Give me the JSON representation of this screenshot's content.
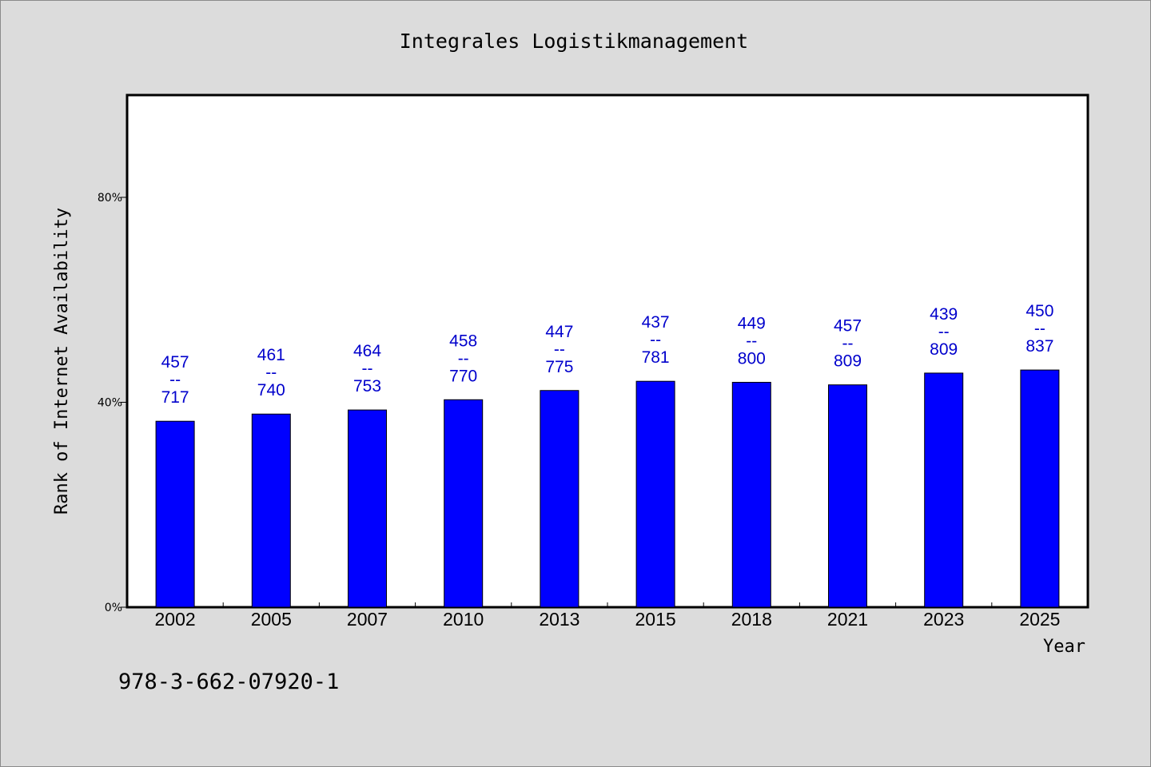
{
  "chart_data": {
    "type": "bar",
    "title": "Integrales Logistikmanagement",
    "xlabel": "Year",
    "ylabel": "Rank of Internet Availability",
    "categories": [
      "2002",
      "2005",
      "2007",
      "2010",
      "2013",
      "2015",
      "2018",
      "2021",
      "2023",
      "2025"
    ],
    "values": [
      36.3,
      37.7,
      38.5,
      40.5,
      42.3,
      44.1,
      43.9,
      43.4,
      45.7,
      46.3
    ],
    "ylim": [
      0,
      100
    ],
    "yticks": [
      0,
      40,
      80
    ],
    "ytick_labels": [
      "0%",
      "40%",
      "80%"
    ],
    "data_labels": [
      {
        "top": "457",
        "mid": "--",
        "bottom": "717"
      },
      {
        "top": "461",
        "mid": "--",
        "bottom": "740"
      },
      {
        "top": "464",
        "mid": "--",
        "bottom": "753"
      },
      {
        "top": "458",
        "mid": "--",
        "bottom": "770"
      },
      {
        "top": "447",
        "mid": "--",
        "bottom": "775"
      },
      {
        "top": "437",
        "mid": "--",
        "bottom": "781"
      },
      {
        "top": "449",
        "mid": "--",
        "bottom": "800"
      },
      {
        "top": "457",
        "mid": "--",
        "bottom": "809"
      },
      {
        "top": "439",
        "mid": "--",
        "bottom": "809"
      },
      {
        "top": "450",
        "mid": "--",
        "bottom": "837"
      }
    ],
    "bar_color": "#0000ff",
    "label_color": "#0000cc",
    "grid": false,
    "legend": "none"
  },
  "footnote": "978-3-662-07920-1"
}
